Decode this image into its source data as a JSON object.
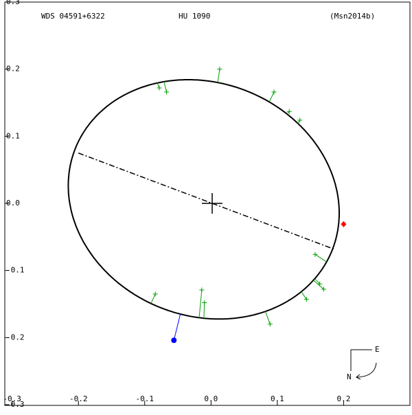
{
  "chart_data": {
    "type": "orbit",
    "title": "WDS 04591+6322",
    "subtitle": "HU 1090",
    "annotation": "(Msn2014b)",
    "xlim": [
      -0.31,
      0.3
    ],
    "ylim": [
      -0.3,
      0.3
    ],
    "xticks": [
      -0.3,
      -0.2,
      -0.1,
      {
        "value": 0,
        "label": "0.0"
      },
      0.1,
      0.2
    ],
    "yticks": [
      -0.3,
      -0.2,
      -0.1,
      {
        "value": 0,
        "label": "0.0"
      },
      0.1,
      0.2,
      0.3
    ],
    "orbit": {
      "center": [
        -0.011,
        0.006
      ],
      "semi_axes": [
        0.208,
        0.174
      ],
      "angle": -20,
      "color": "#000000"
    },
    "node_line": {
      "x": [
        -0.2,
        0.185
      ],
      "y": [
        0.075,
        -0.068
      ]
    },
    "observations": {
      "color": "#00a000",
      "x": [
        0.013,
        -0.078,
        -0.067,
        0.095,
        0.118,
        0.134,
        0.157,
        0.164,
        0.17,
        0.144,
        0.089,
        -0.014,
        -0.01,
        -0.084
      ],
      "y": [
        0.2,
        0.172,
        0.166,
        0.166,
        0.137,
        0.124,
        -0.076,
        -0.12,
        -0.128,
        -0.143,
        -0.18,
        -0.129,
        -0.148,
        -0.135
      ]
    },
    "points": [
      {
        "x": 0.2,
        "y": -0.031,
        "color": "#ff0000",
        "shape": "diamond"
      },
      {
        "x": -0.056,
        "y": -0.204,
        "color": "#0000ff",
        "shape": "circle"
      }
    ],
    "compass": {
      "east": "E",
      "north": "N"
    }
  }
}
